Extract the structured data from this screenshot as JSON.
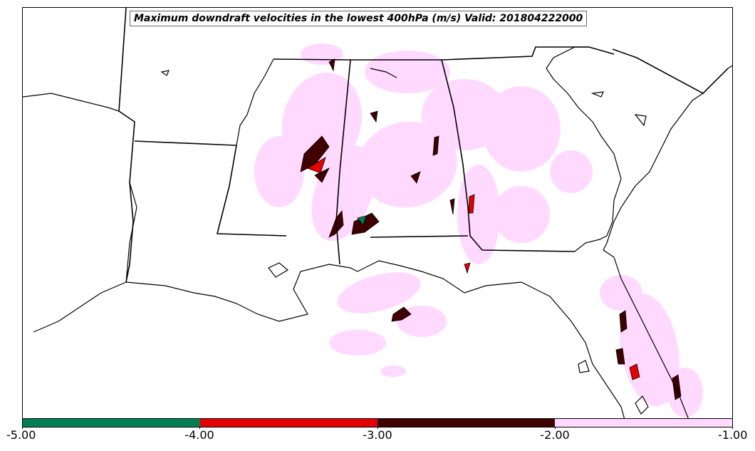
{
  "title": "Maximum downdraft velocities in the lowest 400hPa (m/s) Valid: 201804222000",
  "colorbar": {
    "ticks": [
      "-5.00",
      "-4.00",
      "-3.00",
      "-2.00",
      "-1.00"
    ],
    "bins": [
      {
        "min": -5,
        "max": -4,
        "color": "#007f55"
      },
      {
        "min": -4,
        "max": -3,
        "color": "#e60000"
      },
      {
        "min": -3,
        "max": -2,
        "color": "#400000"
      },
      {
        "min": -2,
        "max": -1,
        "color": "#ffd9ff"
      }
    ]
  },
  "colors": {
    "border": "#000000",
    "light": "#ffd9ff",
    "dark": "#400000",
    "red": "#e60000",
    "green": "#007f55"
  }
}
